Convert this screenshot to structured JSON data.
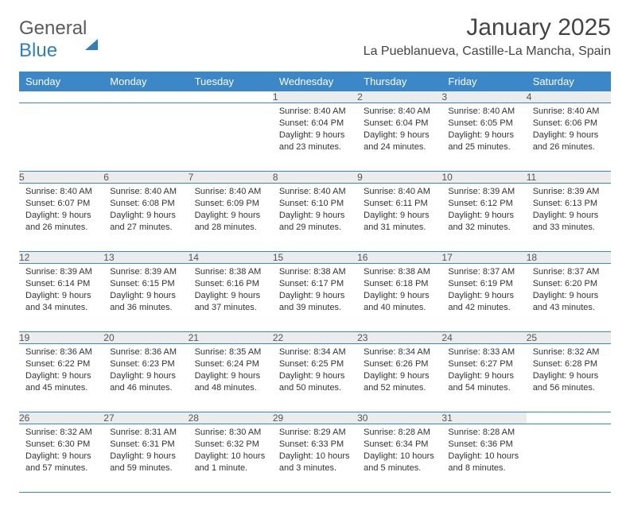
{
  "brand": {
    "part1": "General",
    "part2": "Blue"
  },
  "title": "January 2025",
  "location": "La Pueblanueva, Castille-La Mancha, Spain",
  "colors": {
    "header_bg": "#3b87c8",
    "header_text": "#ffffff",
    "daynum_bg": "#ececec",
    "border": "#3b87c8",
    "brand_gray": "#5a5a5a",
    "brand_blue": "#2f7fbf"
  },
  "weekdays": [
    "Sunday",
    "Monday",
    "Tuesday",
    "Wednesday",
    "Thursday",
    "Friday",
    "Saturday"
  ],
  "weeks": [
    [
      null,
      null,
      null,
      {
        "n": "1",
        "sr": "8:40 AM",
        "ss": "6:04 PM",
        "dl": "9 hours and 23 minutes."
      },
      {
        "n": "2",
        "sr": "8:40 AM",
        "ss": "6:04 PM",
        "dl": "9 hours and 24 minutes."
      },
      {
        "n": "3",
        "sr": "8:40 AM",
        "ss": "6:05 PM",
        "dl": "9 hours and 25 minutes."
      },
      {
        "n": "4",
        "sr": "8:40 AM",
        "ss": "6:06 PM",
        "dl": "9 hours and 26 minutes."
      }
    ],
    [
      {
        "n": "5",
        "sr": "8:40 AM",
        "ss": "6:07 PM",
        "dl": "9 hours and 26 minutes."
      },
      {
        "n": "6",
        "sr": "8:40 AM",
        "ss": "6:08 PM",
        "dl": "9 hours and 27 minutes."
      },
      {
        "n": "7",
        "sr": "8:40 AM",
        "ss": "6:09 PM",
        "dl": "9 hours and 28 minutes."
      },
      {
        "n": "8",
        "sr": "8:40 AM",
        "ss": "6:10 PM",
        "dl": "9 hours and 29 minutes."
      },
      {
        "n": "9",
        "sr": "8:40 AM",
        "ss": "6:11 PM",
        "dl": "9 hours and 31 minutes."
      },
      {
        "n": "10",
        "sr": "8:39 AM",
        "ss": "6:12 PM",
        "dl": "9 hours and 32 minutes."
      },
      {
        "n": "11",
        "sr": "8:39 AM",
        "ss": "6:13 PM",
        "dl": "9 hours and 33 minutes."
      }
    ],
    [
      {
        "n": "12",
        "sr": "8:39 AM",
        "ss": "6:14 PM",
        "dl": "9 hours and 34 minutes."
      },
      {
        "n": "13",
        "sr": "8:39 AM",
        "ss": "6:15 PM",
        "dl": "9 hours and 36 minutes."
      },
      {
        "n": "14",
        "sr": "8:38 AM",
        "ss": "6:16 PM",
        "dl": "9 hours and 37 minutes."
      },
      {
        "n": "15",
        "sr": "8:38 AM",
        "ss": "6:17 PM",
        "dl": "9 hours and 39 minutes."
      },
      {
        "n": "16",
        "sr": "8:38 AM",
        "ss": "6:18 PM",
        "dl": "9 hours and 40 minutes."
      },
      {
        "n": "17",
        "sr": "8:37 AM",
        "ss": "6:19 PM",
        "dl": "9 hours and 42 minutes."
      },
      {
        "n": "18",
        "sr": "8:37 AM",
        "ss": "6:20 PM",
        "dl": "9 hours and 43 minutes."
      }
    ],
    [
      {
        "n": "19",
        "sr": "8:36 AM",
        "ss": "6:22 PM",
        "dl": "9 hours and 45 minutes."
      },
      {
        "n": "20",
        "sr": "8:36 AM",
        "ss": "6:23 PM",
        "dl": "9 hours and 46 minutes."
      },
      {
        "n": "21",
        "sr": "8:35 AM",
        "ss": "6:24 PM",
        "dl": "9 hours and 48 minutes."
      },
      {
        "n": "22",
        "sr": "8:34 AM",
        "ss": "6:25 PM",
        "dl": "9 hours and 50 minutes."
      },
      {
        "n": "23",
        "sr": "8:34 AM",
        "ss": "6:26 PM",
        "dl": "9 hours and 52 minutes."
      },
      {
        "n": "24",
        "sr": "8:33 AM",
        "ss": "6:27 PM",
        "dl": "9 hours and 54 minutes."
      },
      {
        "n": "25",
        "sr": "8:32 AM",
        "ss": "6:28 PM",
        "dl": "9 hours and 56 minutes."
      }
    ],
    [
      {
        "n": "26",
        "sr": "8:32 AM",
        "ss": "6:30 PM",
        "dl": "9 hours and 57 minutes."
      },
      {
        "n": "27",
        "sr": "8:31 AM",
        "ss": "6:31 PM",
        "dl": "9 hours and 59 minutes."
      },
      {
        "n": "28",
        "sr": "8:30 AM",
        "ss": "6:32 PM",
        "dl": "10 hours and 1 minute."
      },
      {
        "n": "29",
        "sr": "8:29 AM",
        "ss": "6:33 PM",
        "dl": "10 hours and 3 minutes."
      },
      {
        "n": "30",
        "sr": "8:28 AM",
        "ss": "6:34 PM",
        "dl": "10 hours and 5 minutes."
      },
      {
        "n": "31",
        "sr": "8:28 AM",
        "ss": "6:36 PM",
        "dl": "10 hours and 8 minutes."
      },
      null
    ]
  ],
  "labels": {
    "sunrise": "Sunrise:",
    "sunset": "Sunset:",
    "daylight": "Daylight:"
  }
}
